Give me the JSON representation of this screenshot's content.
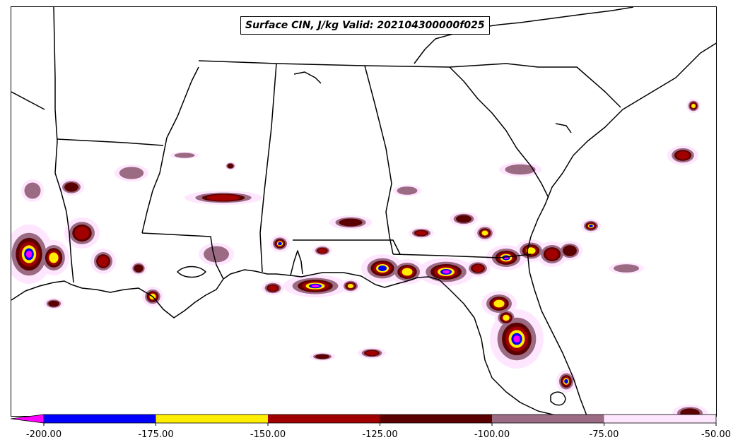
{
  "title": "Surface CIN, J/kg Valid: 202104300000f025",
  "colorbar": {
    "ticks": [
      "-200.00",
      "-175.00",
      "-150.00",
      "-125.00",
      "-100.00",
      "-75.00",
      "-50.00"
    ],
    "colors": [
      "#0000ff",
      "#ffee00",
      "#a00000",
      "#5a0000",
      "#9b6a83",
      "#ffe6ff"
    ],
    "extend_color": "#ff00ff"
  },
  "map": {
    "region": "southeastern-united-states",
    "border_color": "#000000",
    "cin_shades": {
      "extreme": "#ff00ff",
      "very_strong": "#0000ff",
      "strong": "#ffee00",
      "moderate_strong": "#a00000",
      "moderate": "#5a0000",
      "weak": "#9b6a83",
      "very_weak": "#ffe6ff"
    }
  }
}
